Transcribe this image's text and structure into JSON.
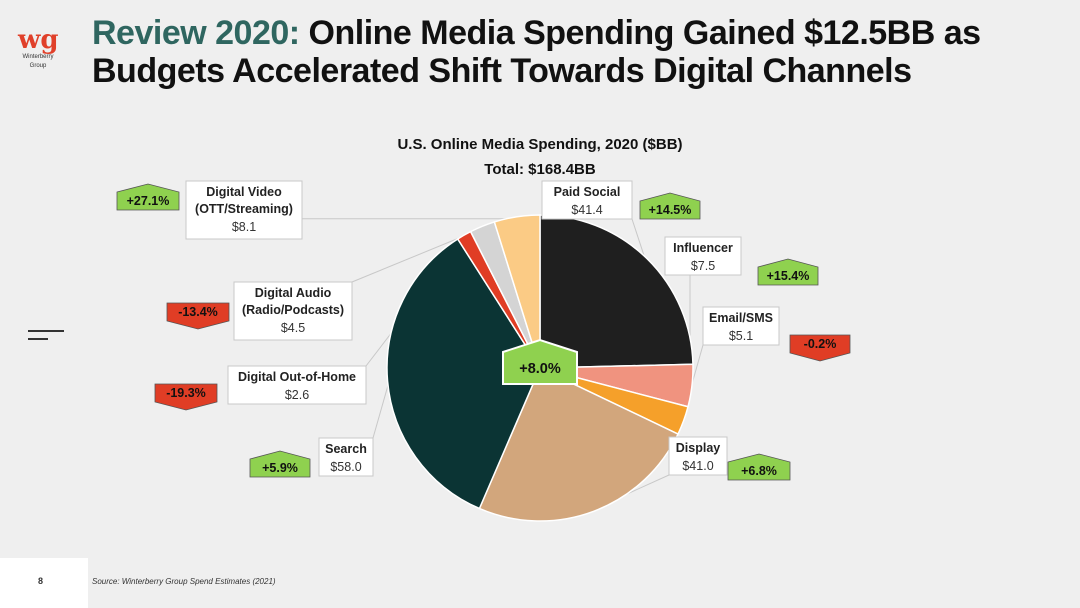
{
  "brand": {
    "logo_text": "wg",
    "name_line1": "Winterberry",
    "name_line2": "Group"
  },
  "title": {
    "accent": "Review 2020:",
    "rest": " Online Media Spending Gained $12.5BB as Budgets Accelerated Shift Towards Digital Channels"
  },
  "footer": {
    "page_number": "8",
    "source": "Source: Winterberry Group Spend Estimates (2021)"
  },
  "chart_data": {
    "type": "pie",
    "title": "U.S. Online Media Spending, 2020 ($BB)",
    "subtitle": "Total: $168.4BB",
    "unit": "$BB",
    "total_change": "+8.0%",
    "total_change_color": "#8fd14f",
    "slices": [
      {
        "name": "Paid Social",
        "label_lines": [
          "Paid Social"
        ],
        "value": 41.4,
        "value_label": "$41.4",
        "change": "+14.5%",
        "change_dir": "up",
        "color": "#1f1f1f"
      },
      {
        "name": "Influencer",
        "label_lines": [
          "Influencer"
        ],
        "value": 7.5,
        "value_label": "$7.5",
        "change": "+15.4%",
        "change_dir": "up",
        "color": "#f0937f"
      },
      {
        "name": "Email/SMS",
        "label_lines": [
          "Email/SMS"
        ],
        "value": 5.1,
        "value_label": "$5.1",
        "change": "-0.2%",
        "change_dir": "down",
        "color": "#f5a02a"
      },
      {
        "name": "Display",
        "label_lines": [
          "Display"
        ],
        "value": 41.0,
        "value_label": "$41.0",
        "change": "+6.8%",
        "change_dir": "up",
        "color": "#d2a67c"
      },
      {
        "name": "Search",
        "label_lines": [
          "Search"
        ],
        "value": 58.0,
        "value_label": "$58.0",
        "change": "+5.9%",
        "change_dir": "up",
        "color": "#0b3434"
      },
      {
        "name": "Digital Out-of-Home",
        "label_lines": [
          "Digital Out-of-Home"
        ],
        "value": 2.6,
        "value_label": "$2.6",
        "change": "-19.3%",
        "change_dir": "down",
        "color": "#e03d25"
      },
      {
        "name": "Digital Audio",
        "label_lines": [
          "Digital Audio",
          "(Radio/Podcasts)"
        ],
        "value": 4.5,
        "value_label": "$4.5",
        "change": "-13.4%",
        "change_dir": "down",
        "color": "#d4d4d4"
      },
      {
        "name": "Digital Video",
        "label_lines": [
          "Digital Video",
          "(OTT/Streaming)"
        ],
        "value": 8.1,
        "value_label": "$8.1",
        "change": "+27.1%",
        "change_dir": "up",
        "color": "#fbcb85"
      }
    ],
    "colors": {
      "up": "#8fd14f",
      "down": "#e03d25"
    }
  }
}
